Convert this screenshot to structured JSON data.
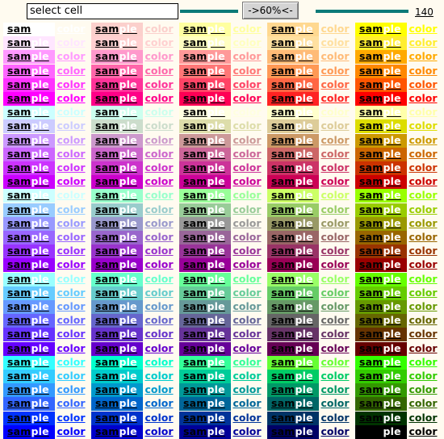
{
  "toolbar": {
    "cell_input_value": "select cell",
    "zoom_button_label": "->60%<-",
    "row_count": "140"
  },
  "labels": {
    "first": "sam",
    "sample_a": "sam",
    "sample_b": "ple",
    "color": "color"
  },
  "colors": {
    "page_background": "#fffbf0",
    "teal_line": "#0c7a78"
  },
  "grid": {
    "columns": 5,
    "rows": [
      [
        "#ffffff",
        "#fbd0cc",
        "#ffffa0",
        "#ffd890",
        "#ffff00"
      ],
      [
        "#ffe6ff",
        "#ffd0d0",
        "#ffffc0",
        "#ffe0a0",
        "#ffee30"
      ],
      [
        "#ff99ff",
        "#ff99cc",
        "#ff9999",
        "#ffbb77",
        "#ffaa00"
      ],
      [
        "#ff66ff",
        "#ff66aa",
        "#ff7777",
        "#ff9955",
        "#ff8800"
      ],
      [
        "#ff33ff",
        "#ff3399",
        "#ff4466",
        "#ff6644",
        "#ff5500"
      ],
      [
        "#ff00ff",
        "#ff0088",
        "#ff0055",
        "#ff2222",
        "#ff0000"
      ],
      [
        "#ccffff",
        "#ccffee",
        "#ffffe0",
        "#ffffcc",
        "#ffffaa"
      ],
      [
        "#ccccff",
        "#ccddcc",
        "#ddddaa",
        "#ddcc99",
        "#dddd00"
      ],
      [
        "#cc99ff",
        "#cc99cc",
        "#cc9999",
        "#cc9966",
        "#cc9900"
      ],
      [
        "#cc66ff",
        "#cc66cc",
        "#cc6699",
        "#cc6666",
        "#cc6600"
      ],
      [
        "#cc33ff",
        "#cc33cc",
        "#cc3399",
        "#cc3366",
        "#cc3300"
      ],
      [
        "#cc00ff",
        "#cc00cc",
        "#cc0099",
        "#cc0055",
        "#cc0000"
      ],
      [
        "#ccffff",
        "#99ffcc",
        "#99ff99",
        "#ccff66",
        "#99ff00"
      ],
      [
        "#99ccff",
        "#99cccc",
        "#99cc99",
        "#99cc66",
        "#99cc00"
      ],
      [
        "#9999ff",
        "#9999cc",
        "#999999",
        "#999966",
        "#999900"
      ],
      [
        "#9966ff",
        "#9966cc",
        "#996699",
        "#996666",
        "#996600"
      ],
      [
        "#9933ff",
        "#9933cc",
        "#993399",
        "#993366",
        "#993300"
      ],
      [
        "#9900ff",
        "#9900cc",
        "#990099",
        "#990055",
        "#990000"
      ],
      [
        "#99ffff",
        "#66ffcc",
        "#66ff99",
        "#99ff66",
        "#66ff00"
      ],
      [
        "#66ccff",
        "#66cccc",
        "#66cc99",
        "#66cc66",
        "#66cc00"
      ],
      [
        "#6699ff",
        "#6699cc",
        "#669999",
        "#669966",
        "#669900"
      ],
      [
        "#6666ff",
        "#6666cc",
        "#666699",
        "#666666",
        "#666600"
      ],
      [
        "#6633ff",
        "#6633cc",
        "#663399",
        "#663366",
        "#663300"
      ],
      [
        "#6600ff",
        "#6600cc",
        "#660099",
        "#660055",
        "#660000"
      ],
      [
        "#33ffff",
        "#00ffcc",
        "#33ff99",
        "#66ff33",
        "#33ff00"
      ],
      [
        "#33ccff",
        "#00cccc",
        "#00cc99",
        "#00cc66",
        "#33cc00"
      ],
      [
        "#3399ff",
        "#0099cc",
        "#009999",
        "#009966",
        "#339900"
      ],
      [
        "#3366ff",
        "#0066cc",
        "#006699",
        "#006666",
        "#336600"
      ],
      [
        "#0033ff",
        "#0033cc",
        "#003399",
        "#003366",
        "#003300"
      ],
      [
        "#0000ff",
        "#0000cc",
        "#000099",
        "#000066",
        "#000000"
      ]
    ]
  }
}
